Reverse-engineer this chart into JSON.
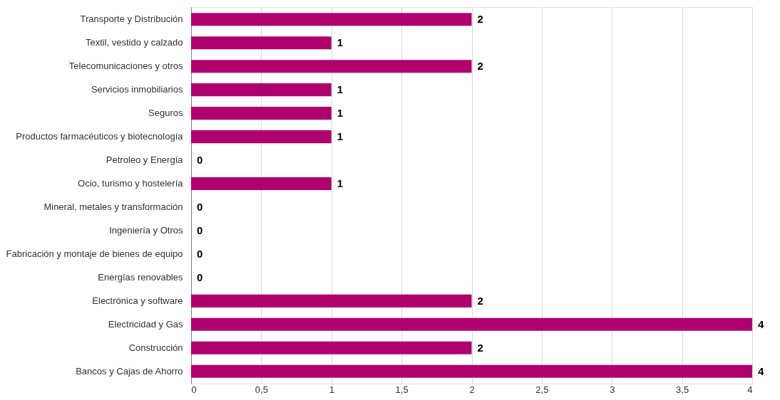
{
  "chart_data": {
    "type": "bar",
    "orientation": "horizontal",
    "categories": [
      "Transporte y Distribución",
      "Textil, vestido y calzado",
      "Telecomunicaciones y otros",
      "Servicios inmobiliarios",
      "Seguros",
      "Productos farmacéuticos y biotecnología",
      "Petroleo y Energía",
      "Ocio, turismo y hostelería",
      "Mineral, metales y transformación",
      "Ingeniería y Otros",
      "Fabricación y montaje de bienes de equipo",
      "Energías renovables",
      "Electrónica y software",
      "Electricidad y Gas",
      "Construcción",
      "Bancos y  Cajas de Ahorro"
    ],
    "values": [
      2,
      1,
      2,
      1,
      1,
      1,
      0,
      1,
      0,
      0,
      0,
      0,
      2,
      4,
      2,
      4
    ],
    "color": "#b0006e",
    "xlim": [
      0,
      4
    ],
    "xticks": [
      0,
      {
        "value": 0.5,
        "label": "0,5"
      },
      1,
      {
        "value": 1.5,
        "label": "1,5"
      },
      2,
      {
        "value": 2.5,
        "label": "2,5"
      },
      3,
      {
        "value": 3.5,
        "label": "3,5"
      },
      4
    ],
    "grid": "x",
    "data_labels": true
  }
}
